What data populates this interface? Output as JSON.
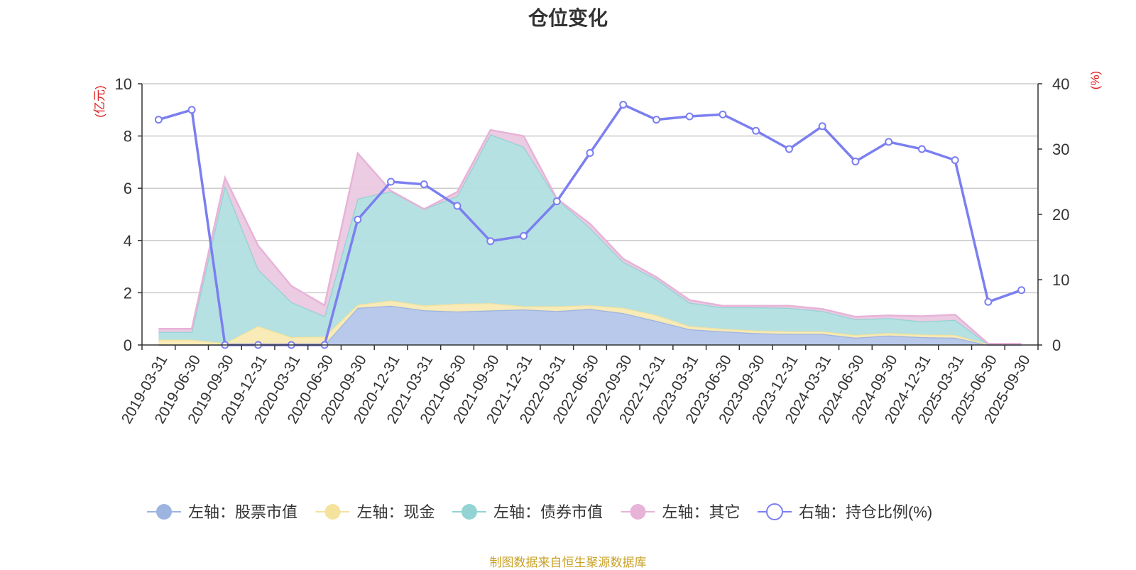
{
  "chart_data": {
    "type": "area",
    "title": "仓位变化",
    "left_axis": {
      "unit_label": "(亿元)",
      "ylim": [
        0,
        10
      ],
      "ticks": [
        0,
        2,
        4,
        6,
        8,
        10
      ]
    },
    "right_axis": {
      "unit_label": "(%)",
      "ylim": [
        0,
        40
      ],
      "ticks": [
        0,
        10,
        20,
        30,
        40
      ]
    },
    "categories": [
      "2019-03-31",
      "2019-06-30",
      "2019-09-30",
      "2019-12-31",
      "2020-03-31",
      "2020-06-30",
      "2020-09-30",
      "2020-12-31",
      "2021-03-31",
      "2021-06-30",
      "2021-09-30",
      "2021-12-31",
      "2022-03-31",
      "2022-06-30",
      "2022-09-30",
      "2022-12-31",
      "2023-03-31",
      "2023-06-30",
      "2023-09-30",
      "2023-12-31",
      "2024-03-31",
      "2024-06-30",
      "2024-09-30",
      "2024-12-31",
      "2025-03-31",
      "2025-06-30",
      "2025-09-30"
    ],
    "stacked_series": [
      {
        "name": "左轴：股票市值",
        "color": "#9db4e0",
        "fill": "#b4c6ea",
        "values": [
          0.0,
          0.0,
          0.0,
          0.0,
          0.0,
          0.0,
          1.42,
          1.5,
          1.33,
          1.28,
          1.32,
          1.36,
          1.3,
          1.38,
          1.22,
          0.92,
          0.6,
          0.52,
          0.45,
          0.42,
          0.42,
          0.28,
          0.36,
          0.3,
          0.28,
          0.0,
          0.0
        ]
      },
      {
        "name": "左轴：现金",
        "color": "#f5e29d",
        "fill": "#f8eab3",
        "values": [
          0.2,
          0.2,
          0.07,
          0.72,
          0.3,
          0.32,
          0.12,
          0.2,
          0.18,
          0.3,
          0.28,
          0.12,
          0.18,
          0.14,
          0.2,
          0.22,
          0.12,
          0.1,
          0.1,
          0.1,
          0.1,
          0.1,
          0.1,
          0.1,
          0.1,
          0.03,
          0.03
        ]
      },
      {
        "name": "左轴：债券市值",
        "color": "#93d3d4",
        "fill": "#b2dfe0",
        "values": [
          0.3,
          0.3,
          6.03,
          2.18,
          1.34,
          0.78,
          4.06,
          4.18,
          3.69,
          4.12,
          6.46,
          6.11,
          4.12,
          2.96,
          1.76,
          1.38,
          0.9,
          0.82,
          0.89,
          0.9,
          0.78,
          0.6,
          0.57,
          0.5,
          0.58,
          0.0,
          0.0
        ]
      },
      {
        "name": "左轴：其它",
        "color": "#e7b3d8",
        "fill": "#ebc9e2",
        "values": [
          0.12,
          0.12,
          0.3,
          0.9,
          0.62,
          0.42,
          1.74,
          0.02,
          0.0,
          0.16,
          0.17,
          0.41,
          0.0,
          0.16,
          0.12,
          0.08,
          0.1,
          0.06,
          0.06,
          0.08,
          0.08,
          0.1,
          0.1,
          0.2,
          0.2,
          0.02,
          0.02
        ]
      }
    ],
    "line_series": {
      "name": "右轴：持仓比例(%)",
      "color": "#7b7ff0",
      "values": [
        34.5,
        36.0,
        0.0,
        0.0,
        0.0,
        0.0,
        19.2,
        25.0,
        24.6,
        21.3,
        15.9,
        16.7,
        22.0,
        29.4,
        36.8,
        34.5,
        35.0,
        35.3,
        32.8,
        30.0,
        33.5,
        28.1,
        31.1,
        30.0,
        28.3,
        6.6,
        8.4
      ]
    },
    "grid": true,
    "legend_position": "bottom"
  },
  "legend": [
    {
      "label": "左轴：股票市值",
      "color": "#9db4e0",
      "marker": "filled"
    },
    {
      "label": "左轴：现金",
      "color": "#f5e29d",
      "marker": "filled"
    },
    {
      "label": "左轴：债券市值",
      "color": "#93d3d4",
      "marker": "filled"
    },
    {
      "label": "左轴：其它",
      "color": "#e7b3d8",
      "marker": "filled"
    },
    {
      "label": "右轴：持仓比例(%)",
      "color": "#7b7ff0",
      "marker": "hollow"
    }
  ],
  "source_note": "制图数据来自恒生聚源数据库"
}
